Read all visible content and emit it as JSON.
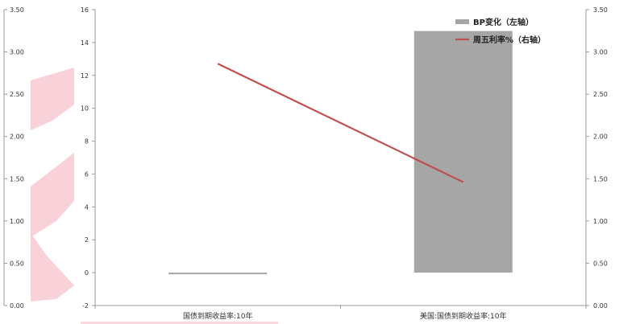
{
  "chart_data": {
    "type": "bar",
    "categories": [
      "国债到期收益率:10年",
      "美国:国债到期收益率:10年"
    ],
    "series": [
      {
        "name": "BP变化（左轴）",
        "kind": "bar",
        "axis": "left",
        "values": [
          -0.1,
          14.7
        ]
      },
      {
        "name": "周五利率%（右轴）",
        "kind": "line",
        "axis": "right",
        "values": [
          2.86,
          1.46
        ]
      }
    ],
    "y_left": {
      "min": -2,
      "max": 16,
      "ticks": [
        "-2",
        "0",
        "2",
        "4",
        "6",
        "8",
        "10",
        "12",
        "14",
        "16"
      ]
    },
    "y_right": {
      "min": 0,
      "max": 3.5,
      "ticks": [
        "0.00",
        "0.50",
        "1.00",
        "1.50",
        "2.00",
        "2.50",
        "3.00",
        "3.50"
      ]
    },
    "legend_position": "top-right",
    "colors": {
      "bar": "#a6a6a6",
      "line": "#c0504d",
      "axis": "#999999",
      "watermark": "#f7b2bd"
    },
    "grid": false
  }
}
